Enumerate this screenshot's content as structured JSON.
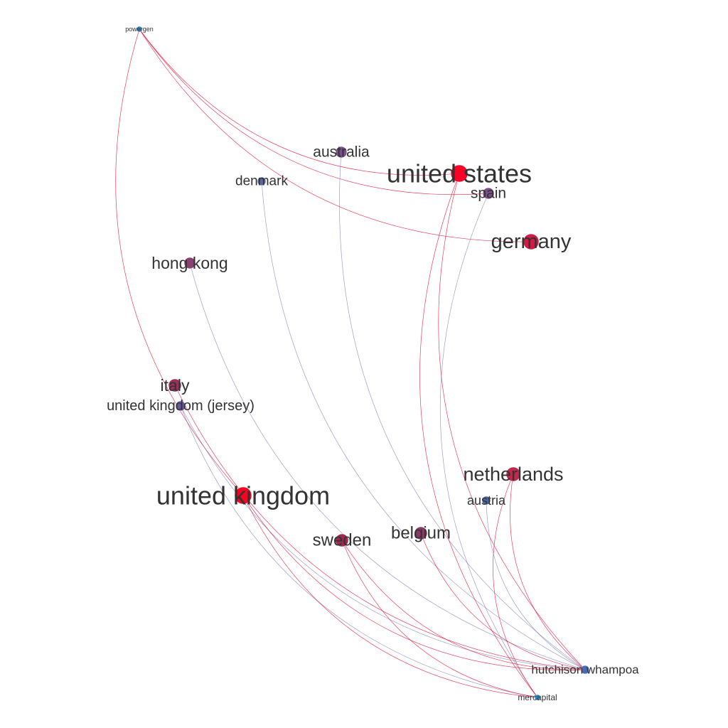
{
  "graph": {
    "colors": {
      "background": "#ffffff",
      "label": "#333333",
      "edge_red": "#e8002a",
      "edge_blue": "#6a6fa8"
    },
    "nodes": [
      {
        "id": "powergen",
        "label": "powergen",
        "color": "#2a8ad4",
        "weight": 1
      },
      {
        "id": "united_states",
        "label": "united states",
        "color": "#ff0026",
        "weight": 10
      },
      {
        "id": "australia",
        "label": "australia",
        "color": "#7a4f8c",
        "weight": 3
      },
      {
        "id": "denmark",
        "label": "denmark",
        "color": "#5a6aa8",
        "weight": 2
      },
      {
        "id": "spain",
        "label": "spain",
        "color": "#7a4f8c",
        "weight": 3
      },
      {
        "id": "germany",
        "label": "germany",
        "color": "#d41a44",
        "weight": 7
      },
      {
        "id": "hong_kong",
        "label": "hong kong",
        "color": "#8a4070",
        "weight": 4
      },
      {
        "id": "italy",
        "label": "italy",
        "color": "#9a2f58",
        "weight": 4
      },
      {
        "id": "united_kingdom_jersey",
        "label": "united kingdom (jersey)",
        "color": "#6a58a0",
        "weight": 3
      },
      {
        "id": "united_kingdom",
        "label": "united kingdom",
        "color": "#ff0020",
        "weight": 10
      },
      {
        "id": "netherlands",
        "label": "netherlands",
        "color": "#c0284c",
        "weight": 6
      },
      {
        "id": "austria",
        "label": "austria",
        "color": "#4a64a8",
        "weight": 2
      },
      {
        "id": "sweden",
        "label": "sweden",
        "color": "#a02850",
        "weight": 5
      },
      {
        "id": "belgium",
        "label": "belgium",
        "color": "#8a3a68",
        "weight": 5
      },
      {
        "id": "hutchison_whampoa",
        "label": "hutchison whampoa",
        "color": "#4a6ab8",
        "weight": 3
      },
      {
        "id": "mercapital",
        "label": "mercapital",
        "color": "#1a90d0",
        "weight": 1
      }
    ],
    "edges": [
      {
        "source": "powergen",
        "target": "united_states",
        "kind": "red"
      },
      {
        "source": "powergen",
        "target": "germany",
        "kind": "red"
      },
      {
        "source": "powergen",
        "target": "spain",
        "kind": "red"
      },
      {
        "source": "powergen",
        "target": "united_kingdom",
        "kind": "red"
      },
      {
        "source": "australia",
        "target": "hutchison_whampoa",
        "kind": "blue"
      },
      {
        "source": "denmark",
        "target": "hutchison_whampoa",
        "kind": "blue"
      },
      {
        "source": "hong_kong",
        "target": "hutchison_whampoa",
        "kind": "blue"
      },
      {
        "source": "italy",
        "target": "hutchison_whampoa",
        "kind": "red"
      },
      {
        "source": "united_kingdom_jersey",
        "target": "hutchison_whampoa",
        "kind": "blue"
      },
      {
        "source": "united_kingdom_jersey",
        "target": "mercapital",
        "kind": "blue"
      },
      {
        "source": "united_kingdom",
        "target": "hutchison_whampoa",
        "kind": "red"
      },
      {
        "source": "united_kingdom",
        "target": "mercapital",
        "kind": "red"
      },
      {
        "source": "united_states",
        "target": "hutchison_whampoa",
        "kind": "red"
      },
      {
        "source": "united_states",
        "target": "mercapital",
        "kind": "red"
      },
      {
        "source": "spain",
        "target": "mercapital",
        "kind": "blue"
      },
      {
        "source": "netherlands",
        "target": "hutchison_whampoa",
        "kind": "red"
      },
      {
        "source": "netherlands",
        "target": "mercapital",
        "kind": "red"
      },
      {
        "source": "austria",
        "target": "hutchison_whampoa",
        "kind": "blue"
      },
      {
        "source": "sweden",
        "target": "hutchison_whampoa",
        "kind": "red"
      },
      {
        "source": "sweden",
        "target": "mercapital",
        "kind": "red"
      },
      {
        "source": "belgium",
        "target": "hutchison_whampoa",
        "kind": "red"
      }
    ]
  }
}
